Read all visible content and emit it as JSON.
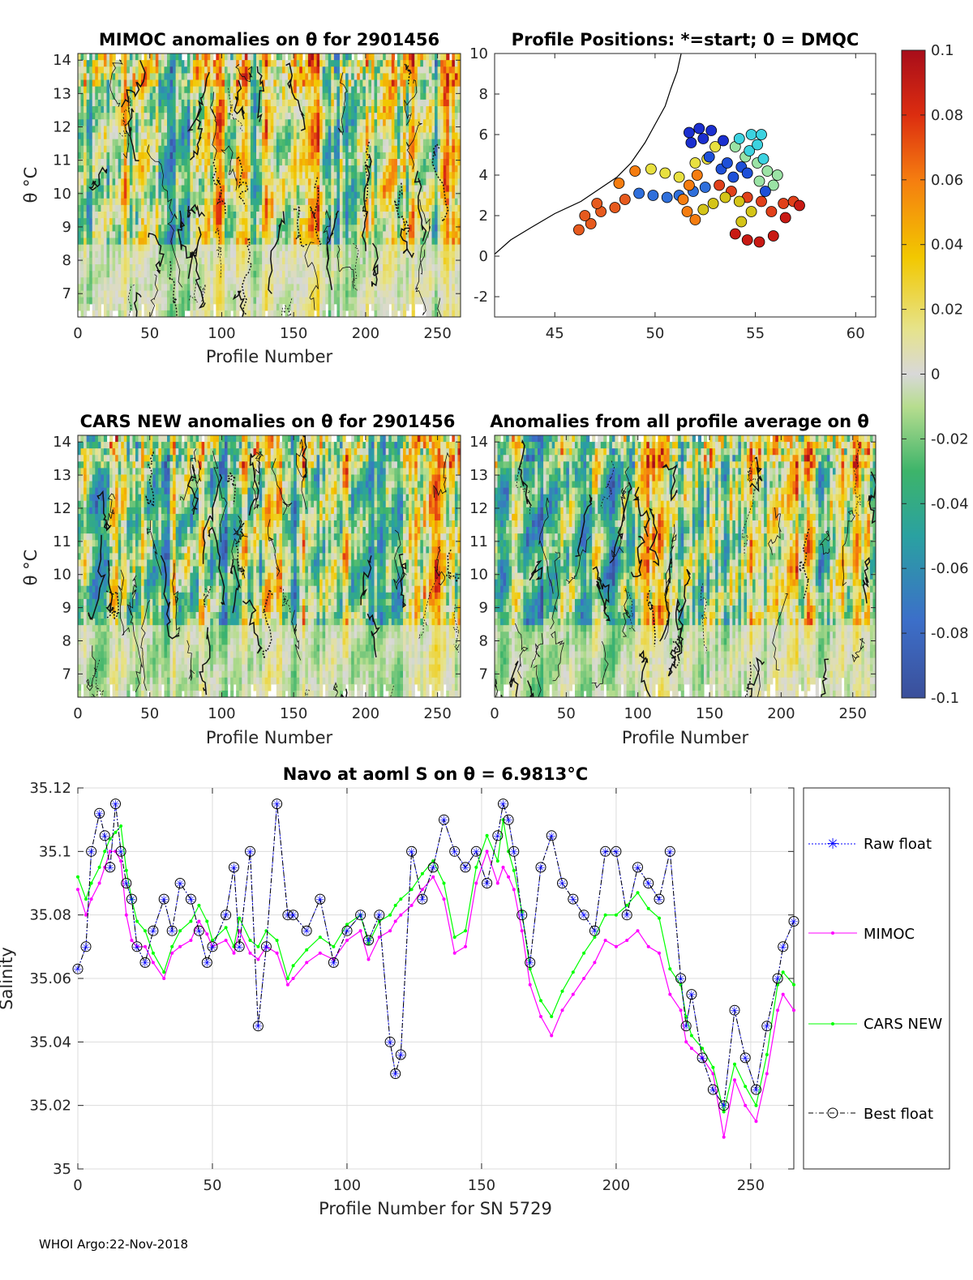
{
  "footer": "WHOI Argo:22-Nov-2018",
  "colorbar": {
    "ticks": [
      "0.1",
      "0.08",
      "0.06",
      "0.04",
      "0.02",
      "0",
      "-0.02",
      "-0.04",
      "-0.06",
      "-0.08",
      "-0.1"
    ],
    "range": [
      -0.1,
      0.1
    ]
  },
  "colors": {
    "raw": "#0000ff",
    "mimoc": "#ff00ff",
    "cars": "#00ff00",
    "best": "#000000"
  },
  "chart_data": [
    {
      "type": "heatmap",
      "title": "MIMOC anomalies on θ  for 2901456",
      "xlabel": "Profile Number",
      "ylabel": "θ °C",
      "xlim": [
        0,
        266
      ],
      "ylim": [
        6.3,
        14.2
      ],
      "xticks": [
        "0",
        "50",
        "100",
        "150",
        "200",
        "250"
      ],
      "yticks": [
        "7",
        "8",
        "9",
        "10",
        "11",
        "12",
        "13",
        "14"
      ],
      "seed": 11
    },
    {
      "type": "scatter",
      "title": "Profile Positions: *=start; 0 = DMQC",
      "xlim": [
        42,
        61
      ],
      "ylim": [
        -3,
        10
      ],
      "xticks": [
        "45",
        "50",
        "55",
        "60"
      ],
      "yticks": [
        "-2",
        "0",
        "2",
        "4",
        "6",
        "8",
        "10"
      ],
      "coastline": [
        [
          42,
          0.1
        ],
        [
          42.8,
          0.8
        ],
        [
          43.8,
          1.4
        ],
        [
          45,
          2.1
        ],
        [
          46.3,
          2.7
        ],
        [
          47.2,
          3.3
        ],
        [
          48.1,
          3.9
        ],
        [
          48.8,
          4.6
        ],
        [
          49.5,
          5.6
        ],
        [
          50,
          6.5
        ],
        [
          50.5,
          7.4
        ],
        [
          50.8,
          8.3
        ],
        [
          51.1,
          9.1
        ],
        [
          51.3,
          10
        ]
      ],
      "track": [
        [
          46.2,
          1.3
        ],
        [
          46.8,
          1.6
        ],
        [
          46.5,
          2.0
        ],
        [
          47.3,
          2.2
        ],
        [
          47.1,
          2.6
        ],
        [
          48.0,
          2.4
        ],
        [
          48.5,
          2.8
        ],
        [
          49.2,
          3.1
        ],
        [
          49.9,
          3.0
        ],
        [
          50.6,
          2.9
        ],
        [
          51.2,
          3.0
        ],
        [
          51.9,
          3.2
        ],
        [
          52.5,
          3.4
        ],
        [
          53.2,
          3.5
        ],
        [
          53.8,
          3.2
        ],
        [
          54.6,
          2.9
        ],
        [
          55.3,
          2.7
        ],
        [
          55.8,
          2.2
        ],
        [
          56.4,
          2.6
        ],
        [
          56.9,
          2.7
        ],
        [
          57.2,
          2.5
        ],
        [
          56.5,
          1.9
        ],
        [
          55.9,
          1.0
        ],
        [
          55.2,
          0.7
        ],
        [
          54.6,
          0.8
        ],
        [
          54.0,
          1.1
        ],
        [
          54.3,
          1.7
        ],
        [
          54.8,
          2.2
        ],
        [
          54.2,
          2.7
        ],
        [
          53.5,
          2.9
        ],
        [
          52.9,
          2.6
        ],
        [
          52.4,
          2.3
        ],
        [
          52.0,
          1.8
        ],
        [
          51.6,
          2.2
        ],
        [
          51.4,
          2.8
        ],
        [
          51.7,
          3.5
        ],
        [
          52.1,
          4.0
        ],
        [
          48.2,
          3.6
        ],
        [
          49.0,
          4.2
        ],
        [
          49.8,
          4.3
        ],
        [
          50.5,
          4.1
        ],
        [
          51.2,
          3.9
        ],
        [
          52.0,
          4.6
        ],
        [
          52.6,
          4.8
        ],
        [
          53.0,
          5.4
        ],
        [
          52.4,
          5.8
        ],
        [
          51.8,
          5.6
        ],
        [
          51.7,
          6.1
        ],
        [
          52.2,
          6.3
        ],
        [
          52.8,
          6.2
        ],
        [
          53.4,
          5.7
        ],
        [
          54.0,
          5.4
        ],
        [
          54.5,
          4.9
        ],
        [
          55.1,
          4.6
        ],
        [
          55.6,
          4.2
        ],
        [
          55.2,
          3.7
        ],
        [
          55.9,
          3.5
        ],
        [
          56.1,
          4.0
        ],
        [
          55.4,
          4.8
        ],
        [
          54.7,
          5.2
        ],
        [
          54.2,
          5.8
        ],
        [
          54.8,
          6.0
        ],
        [
          55.3,
          6.0
        ],
        [
          55.1,
          5.5
        ],
        [
          54.3,
          4.4
        ],
        [
          53.9,
          3.9
        ],
        [
          53.3,
          4.3
        ],
        [
          52.7,
          4.9
        ],
        [
          53.6,
          4.6
        ],
        [
          54.6,
          4.1
        ],
        [
          55.5,
          3.2
        ]
      ]
    },
    {
      "type": "heatmap",
      "title": "CARS NEW anomalies on θ for 2901456",
      "xlabel": "Profile Number",
      "ylabel": "θ °C",
      "xlim": [
        0,
        266
      ],
      "ylim": [
        6.3,
        14.2
      ],
      "xticks": [
        "0",
        "50",
        "100",
        "150",
        "200",
        "250"
      ],
      "yticks": [
        "7",
        "8",
        "9",
        "10",
        "11",
        "12",
        "13",
        "14"
      ],
      "seed": 23
    },
    {
      "type": "heatmap",
      "title": "Anomalies from all profile average on θ",
      "xlabel": "Profile Number",
      "xlim": [
        0,
        266
      ],
      "ylim": [
        6.3,
        14.2
      ],
      "xticks": [
        "0",
        "50",
        "100",
        "150",
        "200",
        "250"
      ],
      "yticks": [
        "7",
        "8",
        "9",
        "10",
        "11",
        "12",
        "13",
        "14"
      ],
      "seed": 37
    },
    {
      "type": "line",
      "title": "Navo at aoml S on θ = 6.9813°C",
      "xlabel": "Profile Number for SN 5729",
      "ylabel": "Salinity",
      "xlim": [
        0,
        266
      ],
      "ylim": [
        35,
        35.12
      ],
      "xticks": [
        "0",
        "50",
        "100",
        "150",
        "200",
        "250"
      ],
      "yticks": [
        "35.12",
        "35.1",
        "35.08",
        "35.06",
        "35.04",
        "35.02",
        "35"
      ],
      "x_knots": [
        0,
        3,
        5,
        8,
        10,
        12,
        14,
        16,
        18,
        20,
        22,
        25,
        28,
        32,
        35,
        38,
        42,
        45,
        48,
        50,
        55,
        58,
        60,
        64,
        67,
        70,
        74,
        78,
        80,
        85,
        90,
        95,
        100,
        105,
        108,
        112,
        116,
        118,
        120,
        124,
        128,
        132,
        136,
        140,
        144,
        148,
        152,
        156,
        158,
        160,
        162,
        165,
        168,
        172,
        176,
        180,
        184,
        188,
        192,
        196,
        200,
        204,
        208,
        212,
        216,
        220,
        224,
        226,
        228,
        232,
        236,
        240,
        244,
        248,
        252,
        256,
        260,
        262,
        266
      ],
      "series": [
        {
          "name": "Raw float",
          "values": [
            35.063,
            35.07,
            35.1,
            35.112,
            35.105,
            35.095,
            35.115,
            35.1,
            35.09,
            35.085,
            35.07,
            35.065,
            35.075,
            35.085,
            35.075,
            35.09,
            35.085,
            35.075,
            35.065,
            35.07,
            35.08,
            35.095,
            35.07,
            35.1,
            35.045,
            35.07,
            35.115,
            35.08,
            35.08,
            35.075,
            35.085,
            35.065,
            35.075,
            35.08,
            35.072,
            35.08,
            35.04,
            35.03,
            35.036,
            35.1,
            35.085,
            35.095,
            35.11,
            35.1,
            35.095,
            35.1,
            35.09,
            35.105,
            35.115,
            35.11,
            35.1,
            35.08,
            35.065,
            35.095,
            35.105,
            35.09,
            35.085,
            35.08,
            35.075,
            35.1,
            35.1,
            35.08,
            35.095,
            35.09,
            35.085,
            35.1,
            35.06,
            35.045,
            35.055,
            35.035,
            35.025,
            35.02,
            35.05,
            35.035,
            35.025,
            35.045,
            35.06,
            35.07,
            35.078
          ]
        },
        {
          "name": "MIMOC",
          "values": [
            35.088,
            35.08,
            35.085,
            35.09,
            35.095,
            35.1,
            35.1,
            35.097,
            35.08,
            35.072,
            35.07,
            35.07,
            35.065,
            35.06,
            35.068,
            35.07,
            35.072,
            35.078,
            35.074,
            35.07,
            35.072,
            35.068,
            35.075,
            35.068,
            35.066,
            35.07,
            35.068,
            35.058,
            35.06,
            35.065,
            35.068,
            35.066,
            35.072,
            35.075,
            35.066,
            35.073,
            35.075,
            35.078,
            35.08,
            35.083,
            35.088,
            35.092,
            35.085,
            35.068,
            35.07,
            35.09,
            35.1,
            35.09,
            35.095,
            35.092,
            35.088,
            35.075,
            35.058,
            35.048,
            35.042,
            35.05,
            35.055,
            35.06,
            35.065,
            35.072,
            35.07,
            35.072,
            35.075,
            35.07,
            35.068,
            35.055,
            35.05,
            35.04,
            35.038,
            35.035,
            35.03,
            35.01,
            35.028,
            35.02,
            35.015,
            35.03,
            35.05,
            35.055,
            35.05
          ]
        },
        {
          "name": "CARS NEW",
          "values": [
            35.092,
            35.085,
            35.09,
            35.095,
            35.1,
            35.104,
            35.106,
            35.108,
            35.094,
            35.085,
            35.078,
            35.075,
            35.068,
            35.062,
            35.07,
            35.075,
            35.078,
            35.083,
            35.078,
            35.072,
            35.076,
            35.07,
            35.079,
            35.072,
            35.07,
            35.075,
            35.072,
            35.06,
            35.064,
            35.069,
            35.073,
            35.07,
            35.077,
            35.08,
            35.071,
            35.078,
            35.08,
            35.083,
            35.085,
            35.088,
            35.093,
            35.097,
            35.09,
            35.073,
            35.075,
            35.095,
            35.105,
            35.097,
            35.11,
            35.1,
            35.094,
            35.081,
            35.063,
            35.053,
            35.048,
            35.056,
            35.062,
            35.068,
            35.073,
            35.08,
            35.08,
            35.083,
            35.087,
            35.082,
            35.079,
            35.063,
            35.058,
            35.048,
            35.042,
            35.038,
            35.032,
            35.018,
            35.033,
            35.026,
            35.02,
            35.036,
            35.058,
            35.062,
            35.058
          ]
        },
        {
          "name": "Best float",
          "values": [
            35.063,
            35.07,
            35.1,
            35.112,
            35.105,
            35.095,
            35.115,
            35.1,
            35.09,
            35.085,
            35.07,
            35.065,
            35.075,
            35.085,
            35.075,
            35.09,
            35.085,
            35.075,
            35.065,
            35.07,
            35.08,
            35.095,
            35.07,
            35.1,
            35.045,
            35.07,
            35.115,
            35.08,
            35.08,
            35.075,
            35.085,
            35.065,
            35.075,
            35.08,
            35.072,
            35.08,
            35.04,
            35.03,
            35.036,
            35.1,
            35.085,
            35.095,
            35.11,
            35.1,
            35.095,
            35.1,
            35.09,
            35.105,
            35.115,
            35.11,
            35.1,
            35.08,
            35.065,
            35.095,
            35.105,
            35.09,
            35.085,
            35.08,
            35.075,
            35.1,
            35.1,
            35.08,
            35.095,
            35.09,
            35.085,
            35.1,
            35.06,
            35.045,
            35.055,
            35.035,
            35.025,
            35.02,
            35.05,
            35.035,
            35.025,
            35.045,
            35.06,
            35.07,
            35.078
          ]
        }
      ]
    }
  ]
}
